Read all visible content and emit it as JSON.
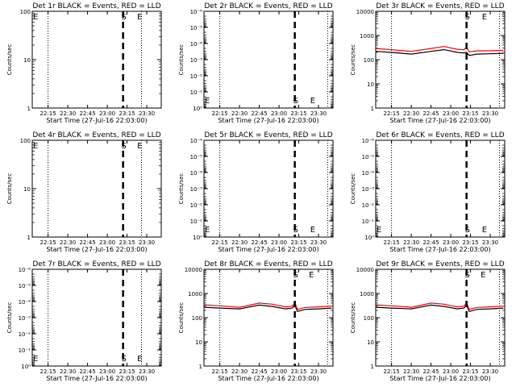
{
  "colors": {
    "events": "#000000",
    "lld": "#ff0000",
    "background": "#ffffff",
    "axes": "#000000"
  },
  "x_ticks": [
    "22:15",
    "22:30",
    "22:45",
    "23:00",
    "23:15",
    "23:30"
  ],
  "log_tick_labels": {
    "1": "1",
    "10": "10",
    "100": "100",
    "1000": "1000",
    "10000": "10000",
    "1e-6": "10⁻⁶",
    "1e-5": "10⁻⁵",
    "1e-4": "10⁻⁴",
    "1e-3": "10⁻³",
    "1e-2": "10⁻²",
    "1e-1": "10⁻¹",
    "1e0": "10⁰"
  },
  "chart_data": [
    {
      "type": "line",
      "title": "Det 1r BLACK = Events, RED = LLD",
      "xlabel": "Start Time (27-Jul-16 22:03:00)",
      "ylabel": "Counts/sec",
      "ylim": [
        1,
        100
      ],
      "yticks": [
        "1",
        "10",
        "100"
      ],
      "xlim": [
        "22:03",
        "23:41"
      ],
      "dotted_lines": [
        "22:15",
        "23:26"
      ],
      "dashed_line": "23:12",
      "markers": {
        "S": "23:12",
        "E": "23:24",
        "E_left": "22:04"
      },
      "series": []
    },
    {
      "type": "line",
      "title": "Det 2r BLACK = Events, RED = LLD",
      "xlabel": "Start Time (27-Jul-16 22:03:00)",
      "ylabel": "Counts/sec",
      "ylim": [
        1,
        1e-06
      ],
      "yticks": [
        "1e0",
        "1e-1",
        "1e-2",
        "1e-3",
        "1e-4",
        "1e-5",
        "1e-6"
      ],
      "xlim": [
        "22:03",
        "23:41"
      ],
      "dotted_lines": [
        "22:15",
        "23:37"
      ],
      "dashed_line": "23:12",
      "markers": {
        "S": "23:12",
        "E": "23:25",
        "E_left": "22:04"
      },
      "series": []
    },
    {
      "type": "line",
      "title": "Det 3r BLACK = Events, RED = LLD",
      "xlabel": "Start Time (27-Jul-16 22:03:00)",
      "ylabel": "Counts/sec",
      "ylim": [
        1,
        10000
      ],
      "yticks": [
        "1",
        "10",
        "100",
        "1000",
        "10000"
      ],
      "xlim": [
        "22:03",
        "23:41"
      ],
      "dotted_lines": [
        "22:15",
        "23:37"
      ],
      "dashed_line": "23:12",
      "markers": {
        "S": "23:12",
        "E": "23:25"
      },
      "series": [
        {
          "name": "Events",
          "color": "#000000",
          "x": [
            "22:03",
            "22:15",
            "22:30",
            "22:45",
            "22:55",
            "23:05",
            "23:10",
            "23:12",
            "23:14",
            "23:20",
            "23:30",
            "23:40"
          ],
          "y": [
            220,
            200,
            170,
            220,
            260,
            200,
            190,
            200,
            150,
            170,
            175,
            180
          ]
        },
        {
          "name": "LLD",
          "color": "#ff0000",
          "x": [
            "22:03",
            "22:15",
            "22:30",
            "22:45",
            "22:55",
            "23:05",
            "23:10",
            "23:12",
            "23:14",
            "23:20",
            "23:30",
            "23:40"
          ],
          "y": [
            290,
            260,
            220,
            290,
            350,
            270,
            260,
            330,
            210,
            230,
            235,
            245
          ]
        }
      ]
    },
    {
      "type": "line",
      "title": "Det 4r BLACK = Events, RED = LLD",
      "xlabel": "Start Time (27-Jul-16 22:03:00)",
      "ylabel": "Counts/sec",
      "ylim": [
        1,
        100
      ],
      "yticks": [
        "1",
        "10",
        "100"
      ],
      "xlim": [
        "22:03",
        "23:41"
      ],
      "dotted_lines": [
        "22:15",
        "23:26"
      ],
      "dashed_line": "23:12",
      "markers": {
        "S": "23:12",
        "E": "23:24",
        "E_left": "22:04"
      },
      "series": []
    },
    {
      "type": "line",
      "title": "Det 5r BLACK = Events, RED = LLD",
      "xlabel": "Start Time (27-Jul-16 22:03:00)",
      "ylabel": "Counts/sec",
      "ylim": [
        1,
        1e-06
      ],
      "yticks": [
        "1e0",
        "1e-1",
        "1e-2",
        "1e-3",
        "1e-4",
        "1e-5",
        "1e-6"
      ],
      "xlim": [
        "22:03",
        "23:41"
      ],
      "dotted_lines": [
        "22:15",
        "23:37"
      ],
      "dashed_line": "23:12",
      "markers": {
        "S": "23:12",
        "E": "23:25",
        "E_left": "22:04"
      },
      "series": []
    },
    {
      "type": "line",
      "title": "Det 6r BLACK = Events, RED = LLD",
      "xlabel": "Start Time (27-Jul-16 22:03:00)",
      "ylabel": "Counts/sec",
      "ylim": [
        1,
        1e-06
      ],
      "yticks": [
        "1e0",
        "1e-1",
        "1e-2",
        "1e-3",
        "1e-4",
        "1e-5",
        "1e-6"
      ],
      "xlim": [
        "22:03",
        "23:41"
      ],
      "dotted_lines": [
        "22:15",
        "23:37"
      ],
      "dashed_line": "23:12",
      "markers": {
        "S": "23:12",
        "E": "23:25",
        "E_left": "22:04"
      },
      "series": []
    },
    {
      "type": "line",
      "title": "Det 7r BLACK = Events, RED = LLD",
      "xlabel": "Start Time (27-Jul-16 22:03:00)",
      "ylabel": "Counts/sec",
      "ylim": [
        1,
        1e-06
      ],
      "yticks": [
        "1e0",
        "1e-1",
        "1e-2",
        "1e-3",
        "1e-4",
        "1e-5",
        "1e-6"
      ],
      "xlim": [
        "22:03",
        "23:41"
      ],
      "dotted_lines": [
        "22:15",
        "23:26"
      ],
      "dashed_line": "23:12",
      "markers": {
        "S": "23:12",
        "E": "23:24",
        "E_left": "22:04"
      },
      "series": []
    },
    {
      "type": "line",
      "title": "Det 8r BLACK = Events, RED = LLD",
      "xlabel": "Start Time (27-Jul-16 22:03:00)",
      "ylabel": "Counts/sec",
      "ylim": [
        1,
        10000
      ],
      "yticks": [
        "1",
        "10",
        "100",
        "1000",
        "10000"
      ],
      "xlim": [
        "22:03",
        "23:41"
      ],
      "dotted_lines": [
        "22:15",
        "23:37"
      ],
      "dashed_line": "23:12",
      "markers": {
        "S": "23:12",
        "E": "23:24"
      },
      "series": [
        {
          "name": "Events",
          "color": "#000000",
          "x": [
            "22:03",
            "22:15",
            "22:30",
            "22:45",
            "22:55",
            "23:05",
            "23:10",
            "23:12",
            "23:14",
            "23:20",
            "23:30",
            "23:40"
          ],
          "y": [
            270,
            250,
            230,
            330,
            290,
            230,
            250,
            330,
            180,
            220,
            230,
            250
          ]
        },
        {
          "name": "LLD",
          "color": "#ff0000",
          "x": [
            "22:03",
            "22:15",
            "22:30",
            "22:45",
            "22:55",
            "23:05",
            "23:10",
            "23:12",
            "23:14",
            "23:20",
            "23:30",
            "23:40"
          ],
          "y": [
            340,
            310,
            270,
            400,
            360,
            280,
            300,
            420,
            220,
            265,
            280,
            300
          ]
        }
      ]
    },
    {
      "type": "line",
      "title": "Det 9r BLACK = Events, RED = LLD",
      "xlabel": "Start Time (27-Jul-16 22:03:00)",
      "ylabel": "Counts/sec",
      "ylim": [
        1,
        10000
      ],
      "yticks": [
        "1",
        "10",
        "100",
        "1000",
        "10000"
      ],
      "xlim": [
        "22:03",
        "23:41"
      ],
      "dotted_lines": [
        "22:15",
        "23:37"
      ],
      "dashed_line": "23:12",
      "markers": {
        "S": "23:12",
        "E": "23:24"
      },
      "series": [
        {
          "name": "Events",
          "color": "#000000",
          "x": [
            "22:03",
            "22:15",
            "22:30",
            "22:45",
            "22:55",
            "23:05",
            "23:10",
            "23:12",
            "23:14",
            "23:20",
            "23:30",
            "23:40"
          ],
          "y": [
            270,
            250,
            230,
            330,
            290,
            230,
            250,
            330,
            180,
            220,
            230,
            250
          ]
        },
        {
          "name": "LLD",
          "color": "#ff0000",
          "x": [
            "22:03",
            "22:15",
            "22:30",
            "22:45",
            "22:55",
            "23:05",
            "23:10",
            "23:12",
            "23:14",
            "23:20",
            "23:30",
            "23:40"
          ],
          "y": [
            340,
            310,
            270,
            400,
            360,
            280,
            300,
            420,
            220,
            265,
            280,
            300
          ]
        }
      ]
    }
  ]
}
